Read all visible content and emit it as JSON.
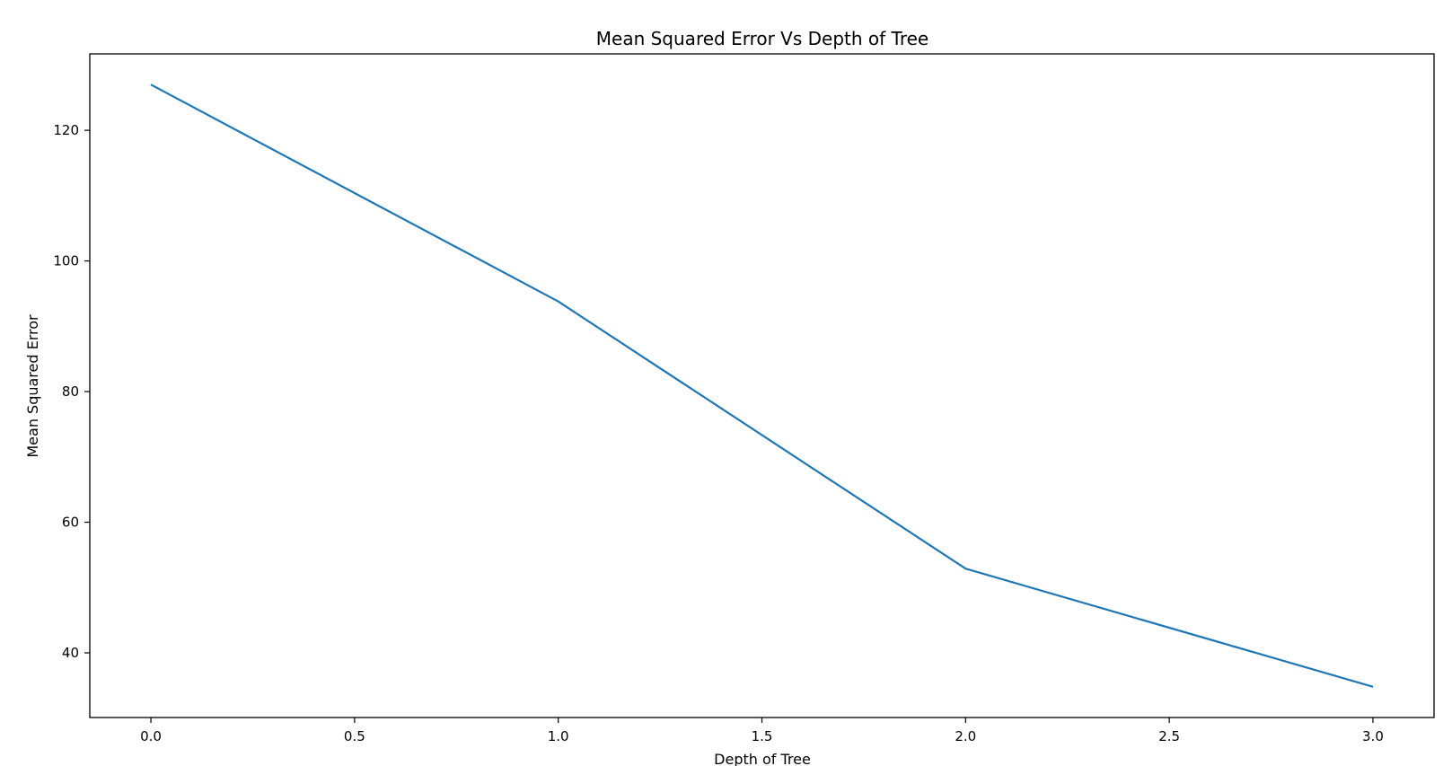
{
  "chart_data": {
    "type": "line",
    "title": "Mean Squared Error Vs Depth of Tree",
    "xlabel": "Depth of Tree",
    "ylabel": "Mean Squared Error",
    "xlim": [
      -0.15,
      3.15
    ],
    "ylim": [
      30.1,
      131.7
    ],
    "x_ticks": [
      0.0,
      0.5,
      1.0,
      1.5,
      2.0,
      2.5,
      3.0
    ],
    "x_tick_labels": [
      "0.0",
      "0.5",
      "1.0",
      "1.5",
      "2.0",
      "2.5",
      "3.0"
    ],
    "y_ticks": [
      40,
      60,
      80,
      100,
      120
    ],
    "y_tick_labels": [
      "40",
      "60",
      "80",
      "100",
      "120"
    ],
    "grid": false,
    "series": [
      {
        "color": "#1f77b4",
        "x": [
          0,
          1,
          2,
          3
        ],
        "y": [
          127.0,
          93.8,
          52.9,
          34.8
        ]
      }
    ]
  }
}
